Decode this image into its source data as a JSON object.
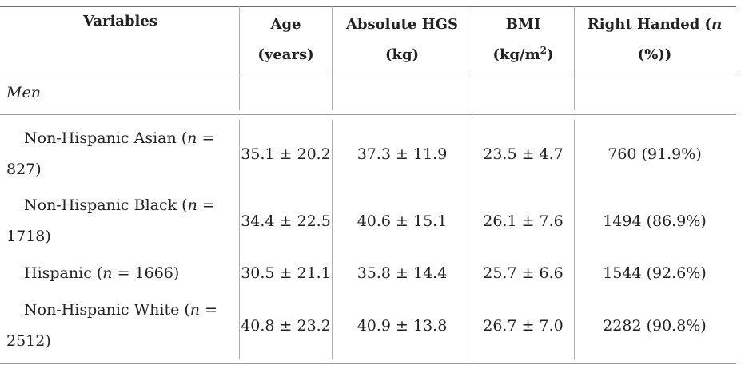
{
  "header": {
    "variables": "Variables",
    "age_l1": "Age",
    "age_l2": "(years)",
    "hgs_l1": "Absolute HGS",
    "hgs_l2": "(kg)",
    "bmi_l1": "BMI",
    "bmi_l2_pre": "(kg/m",
    "bmi_l2_sup": "2",
    "bmi_l2_post": ")",
    "rh_l1_pre": "Right Handed (",
    "rh_l1_n": "n",
    "rh_l2": "(%))"
  },
  "section": {
    "label": "Men"
  },
  "rows": [
    {
      "name_pre": "Non-Hispanic Asian (",
      "n_sym": "n",
      "name_mid": " =",
      "name_l2": "827)",
      "age": "35.1 ± 20.2",
      "hgs": "37.3 ± 11.9",
      "bmi": "23.5 ± 4.7",
      "rh": "760 (91.9%)"
    },
    {
      "name_pre": "Non-Hispanic Black (",
      "n_sym": "n",
      "name_mid": " =",
      "name_l2": "1718)",
      "age": "34.4 ± 22.5",
      "hgs": "40.6 ± 15.1",
      "bmi": "26.1 ± 7.6",
      "rh": "1494 (86.9%)"
    },
    {
      "name_pre": "Hispanic (",
      "n_sym": "n",
      "name_mid": " = 1666)",
      "name_l2": "",
      "age": "30.5 ± 21.1",
      "hgs": "35.8 ± 14.4",
      "bmi": "25.7 ± 6.6",
      "rh": "1544 (92.6%)"
    },
    {
      "name_pre": "Non-Hispanic White (",
      "n_sym": "n",
      "name_mid": " =",
      "name_l2": "2512)",
      "age": "40.8 ± 23.2",
      "hgs": "40.9 ± 13.8",
      "bmi": "26.7 ± 7.0",
      "rh": "2282 (90.8%)"
    }
  ]
}
